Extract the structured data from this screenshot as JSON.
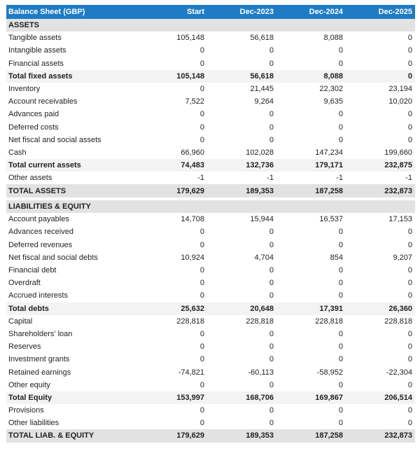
{
  "header": {
    "title": "Balance Sheet (GBP)",
    "columns": [
      "Start",
      "Dec-2023",
      "Dec-2024",
      "Dec-2025"
    ]
  },
  "colors": {
    "header_bg": "#1f7bc4",
    "section_bg": "#e2e2e2",
    "subtotal_bg": "#f3f3f3"
  },
  "assets": {
    "title": "ASSETS",
    "rows": [
      {
        "label": "Tangible assets",
        "values": [
          "105,148",
          "56,618",
          "8,088",
          "0"
        ],
        "type": "row"
      },
      {
        "label": "Intangible assets",
        "values": [
          "0",
          "0",
          "0",
          "0"
        ],
        "type": "row"
      },
      {
        "label": "Financial assets",
        "values": [
          "0",
          "0",
          "0",
          "0"
        ],
        "type": "row"
      },
      {
        "label": "Total fixed assets",
        "values": [
          "105,148",
          "56,618",
          "8,088",
          "0"
        ],
        "type": "sub"
      },
      {
        "label": "Inventory",
        "values": [
          "0",
          "21,445",
          "22,302",
          "23,194"
        ],
        "type": "row"
      },
      {
        "label": "Account receivables",
        "values": [
          "7,522",
          "9,264",
          "9,635",
          "10,020"
        ],
        "type": "row"
      },
      {
        "label": "Advances paid",
        "values": [
          "0",
          "0",
          "0",
          "0"
        ],
        "type": "row"
      },
      {
        "label": "Deferred costs",
        "values": [
          "0",
          "0",
          "0",
          "0"
        ],
        "type": "row"
      },
      {
        "label": "Net fiscal and social assets",
        "values": [
          "0",
          "0",
          "0",
          "0"
        ],
        "type": "row"
      },
      {
        "label": "Cash",
        "values": [
          "66,960",
          "102,028",
          "147,234",
          "199,660"
        ],
        "type": "row"
      },
      {
        "label": "Total current assets",
        "values": [
          "74,483",
          "132,736",
          "179,171",
          "232,875"
        ],
        "type": "sub"
      },
      {
        "label": "Other assets",
        "values": [
          "-1",
          "-1",
          "-1",
          "-1"
        ],
        "type": "row"
      },
      {
        "label": "TOTAL ASSETS",
        "values": [
          "179,629",
          "189,353",
          "187,258",
          "232,873"
        ],
        "type": "tot"
      }
    ]
  },
  "liabilities": {
    "title": "LIABILITIES & EQUITY",
    "rows": [
      {
        "label": "Account payables",
        "values": [
          "14,708",
          "15,944",
          "16,537",
          "17,153"
        ],
        "type": "row"
      },
      {
        "label": "Advances received",
        "values": [
          "0",
          "0",
          "0",
          "0"
        ],
        "type": "row"
      },
      {
        "label": "Deferred revenues",
        "values": [
          "0",
          "0",
          "0",
          "0"
        ],
        "type": "row"
      },
      {
        "label": "Net fiscal and social debts",
        "values": [
          "10,924",
          "4,704",
          "854",
          "9,207"
        ],
        "type": "row"
      },
      {
        "label": "Financial debt",
        "values": [
          "0",
          "0",
          "0",
          "0"
        ],
        "type": "row"
      },
      {
        "label": "Overdraft",
        "values": [
          "0",
          "0",
          "0",
          "0"
        ],
        "type": "row"
      },
      {
        "label": "Accrued interests",
        "values": [
          "0",
          "0",
          "0",
          "0"
        ],
        "type": "row"
      },
      {
        "label": "Total debts",
        "values": [
          "25,632",
          "20,648",
          "17,391",
          "26,360"
        ],
        "type": "sub"
      },
      {
        "label": "Capital",
        "values": [
          "228,818",
          "228,818",
          "228,818",
          "228,818"
        ],
        "type": "row"
      },
      {
        "label": "Shareholders' loan",
        "values": [
          "0",
          "0",
          "0",
          "0"
        ],
        "type": "row"
      },
      {
        "label": "Reserves",
        "values": [
          "0",
          "0",
          "0",
          "0"
        ],
        "type": "row"
      },
      {
        "label": "Investment grants",
        "values": [
          "0",
          "0",
          "0",
          "0"
        ],
        "type": "row"
      },
      {
        "label": "Retained earnings",
        "values": [
          "-74,821",
          "-60,113",
          "-58,952",
          "-22,304"
        ],
        "type": "row"
      },
      {
        "label": "Other equity",
        "values": [
          "0",
          "0",
          "0",
          "0"
        ],
        "type": "row"
      },
      {
        "label": "Total Equity",
        "values": [
          "153,997",
          "168,706",
          "169,867",
          "206,514"
        ],
        "type": "sub"
      },
      {
        "label": "Provisions",
        "values": [
          "0",
          "0",
          "0",
          "0"
        ],
        "type": "row"
      },
      {
        "label": "Other liabilities",
        "values": [
          "0",
          "0",
          "0",
          "0"
        ],
        "type": "row"
      },
      {
        "label": "TOTAL LIAB. & EQUITY",
        "values": [
          "179,629",
          "189,353",
          "187,258",
          "232,873"
        ],
        "type": "tot"
      }
    ]
  }
}
